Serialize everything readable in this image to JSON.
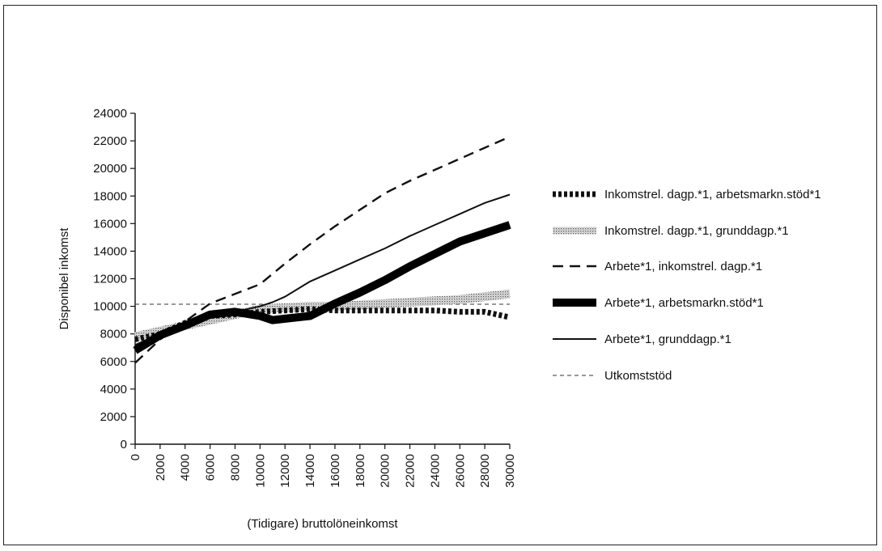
{
  "chart_data": {
    "type": "line",
    "title": "",
    "xlabel": "(Tidigare) bruttolöneinkomst",
    "ylabel": "Disponibel inkomst",
    "xlim": [
      0,
      30000
    ],
    "ylim": [
      0,
      24000
    ],
    "x_ticks": [
      0,
      2000,
      4000,
      6000,
      8000,
      10000,
      12000,
      14000,
      16000,
      18000,
      20000,
      22000,
      24000,
      26000,
      28000,
      30000
    ],
    "y_ticks": [
      0,
      2000,
      4000,
      6000,
      8000,
      10000,
      12000,
      14000,
      16000,
      18000,
      20000,
      22000,
      24000
    ],
    "grid": false,
    "legend_position": "right",
    "series": [
      {
        "name": "Inkomstrel. dagp.*1, arbetsmarkn.stöd*1",
        "style": "thick-dotted",
        "x": [
          0,
          2000,
          4000,
          6000,
          8000,
          10000,
          12000,
          14000,
          16000,
          18000,
          20000,
          22000,
          24000,
          26000,
          28000,
          30000
        ],
        "y": [
          7600,
          8000,
          8800,
          9300,
          9400,
          9600,
          9700,
          9800,
          9700,
          9700,
          9700,
          9700,
          9700,
          9600,
          9600,
          9200
        ]
      },
      {
        "name": "Inkomstrel. dagp.*1, grunddagp.*1",
        "style": "shaded-band",
        "x": [
          0,
          2000,
          4000,
          6000,
          8000,
          10000,
          12000,
          14000,
          16000,
          18000,
          20000,
          22000,
          24000,
          26000,
          28000,
          30000
        ],
        "y": [
          7800,
          8200,
          8600,
          9000,
          9400,
          9800,
          9900,
          10000,
          10000,
          10100,
          10200,
          10300,
          10400,
          10500,
          10700,
          10900
        ]
      },
      {
        "name": "Arbete*1, inkomstrel. dagp.*1",
        "style": "dashed",
        "x": [
          0,
          2000,
          4000,
          6000,
          8000,
          10000,
          12000,
          14000,
          16000,
          18000,
          20000,
          22000,
          24000,
          26000,
          28000,
          30000
        ],
        "y": [
          5900,
          7600,
          8900,
          10200,
          10900,
          11600,
          13100,
          14500,
          15800,
          17000,
          18200,
          19100,
          19900,
          20700,
          21500,
          22300
        ]
      },
      {
        "name": "Arbete*1, arbetsmarkn.stöd*1",
        "style": "thick-solid",
        "x": [
          0,
          2000,
          4000,
          6000,
          7000,
          8000,
          10000,
          11000,
          12000,
          14000,
          16000,
          18000,
          20000,
          22000,
          24000,
          26000,
          28000,
          30000
        ],
        "y": [
          6800,
          7900,
          8600,
          9400,
          9500,
          9600,
          9300,
          9000,
          9100,
          9300,
          10200,
          11000,
          11900,
          12900,
          13800,
          14700,
          15300,
          15900
        ]
      },
      {
        "name": "Arbete*1, grunddagp.*1",
        "style": "solid",
        "x": [
          0,
          2000,
          4000,
          6000,
          8000,
          10000,
          11000,
          12000,
          14000,
          16000,
          18000,
          20000,
          22000,
          24000,
          26000,
          28000,
          30000
        ],
        "y": [
          7200,
          8000,
          8600,
          9200,
          9600,
          10000,
          10300,
          10700,
          11800,
          12600,
          13400,
          14200,
          15100,
          15900,
          16700,
          17500,
          18100
        ]
      },
      {
        "name": "Utkomststöd",
        "style": "thin-dashed",
        "x": [
          0,
          30000
        ],
        "y": [
          10150,
          10150
        ]
      }
    ]
  }
}
